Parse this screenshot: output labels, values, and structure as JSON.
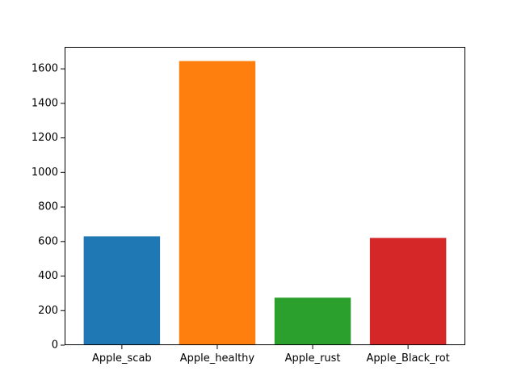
{
  "chart_data": {
    "type": "bar",
    "categories": [
      "Apple_scab",
      "Apple_healthy",
      "Apple_rust",
      "Apple_Black_rot"
    ],
    "values": [
      630,
      1645,
      275,
      621
    ],
    "colors": [
      "#1f77b4",
      "#ff7f0e",
      "#2ca02c",
      "#d62728"
    ],
    "title": "",
    "xlabel": "",
    "ylabel": "",
    "ylim": [
      0,
      1727
    ],
    "yticks": [
      0,
      200,
      400,
      600,
      800,
      1000,
      1200,
      1400,
      1600
    ],
    "grid": false,
    "legend": "none"
  }
}
